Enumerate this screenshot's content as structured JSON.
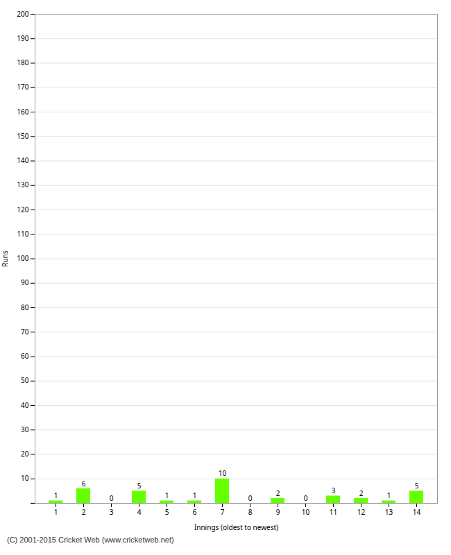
{
  "chart_data": {
    "type": "bar",
    "xlabel": "Innings (oldest to newest)",
    "ylabel": "Runs",
    "caption": "(C) 2001-2015 Cricket Web (www.cricketweb.net)",
    "categories": [
      1,
      2,
      3,
      4,
      5,
      6,
      7,
      8,
      9,
      10,
      11,
      12,
      13,
      14
    ],
    "values": [
      1,
      6,
      0,
      5,
      1,
      1,
      10,
      0,
      2,
      0,
      3,
      2,
      1,
      5
    ],
    "color": "#66ff00",
    "ylim": [
      0,
      200
    ],
    "yticks": [
      {
        "value": 0,
        "label": null
      },
      10,
      20,
      30,
      40,
      50,
      60,
      70,
      80,
      90,
      100,
      110,
      120,
      130,
      140,
      150,
      160,
      170,
      180,
      190,
      200
    ],
    "grid": true,
    "data_labels": true
  }
}
